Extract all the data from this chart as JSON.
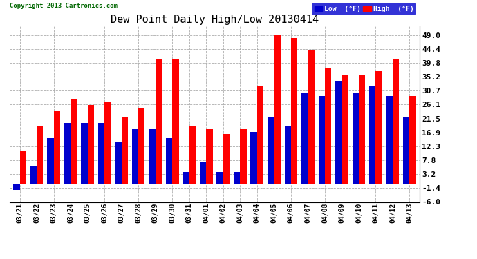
{
  "title": "Dew Point Daily High/Low 20130414",
  "copyright": "Copyright 2013 Cartronics.com",
  "categories": [
    "03/21",
    "03/22",
    "03/23",
    "03/24",
    "03/25",
    "03/26",
    "03/27",
    "03/28",
    "03/29",
    "03/30",
    "03/31",
    "04/01",
    "04/02",
    "04/03",
    "04/04",
    "04/05",
    "04/06",
    "04/07",
    "04/08",
    "04/09",
    "04/10",
    "04/11",
    "04/12",
    "04/13"
  ],
  "high_values": [
    11.0,
    19.0,
    24.0,
    28.0,
    26.0,
    27.0,
    22.0,
    25.0,
    41.0,
    41.0,
    19.0,
    18.0,
    16.5,
    18.0,
    32.0,
    49.0,
    48.0,
    44.0,
    38.0,
    36.0,
    36.0,
    37.0,
    41.0,
    29.0
  ],
  "low_values": [
    -2.0,
    6.0,
    15.0,
    20.0,
    20.0,
    20.0,
    14.0,
    18.0,
    18.0,
    15.0,
    4.0,
    7.0,
    4.0,
    4.0,
    17.0,
    22.0,
    19.0,
    30.0,
    29.0,
    34.0,
    30.0,
    32.0,
    29.0,
    22.0
  ],
  "high_color": "#ff0000",
  "low_color": "#0000cc",
  "background_color": "#ffffff",
  "grid_color": "#999999",
  "yticks": [
    -6.0,
    -1.4,
    3.2,
    7.8,
    12.3,
    16.9,
    21.5,
    26.1,
    30.7,
    35.2,
    39.8,
    44.4,
    49.0
  ],
  "ylim": [
    -6.0,
    52.0
  ],
  "bar_width": 0.38,
  "legend_low_label": "Low  (°F)",
  "legend_high_label": "High  (°F)",
  "legend_bg": "#0000cc",
  "title_fontsize": 11,
  "tick_fontsize": 7,
  "copyright_color": "#006600"
}
